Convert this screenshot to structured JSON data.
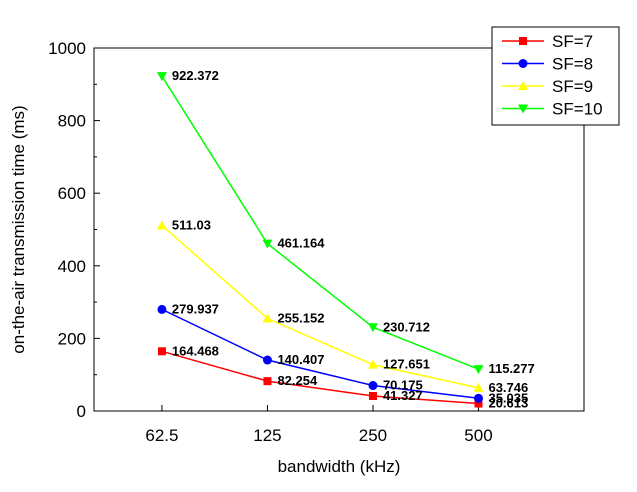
{
  "chart_data": {
    "type": "line",
    "xlabel": "bandwidth (kHz)",
    "ylabel": "on-the-air transmission time (ms)",
    "x": [
      62.5,
      125,
      250,
      500
    ],
    "x_tick_labels": [
      "62.5",
      "125",
      "250",
      "500"
    ],
    "y_ticks": [
      0,
      200,
      400,
      600,
      800,
      1000
    ],
    "y_tick_labels": [
      "0",
      "200",
      "400",
      "600",
      "800",
      "1000"
    ],
    "ylim": [
      0,
      1000
    ],
    "x_scale": "log",
    "legend_position": "top-right",
    "grid": false,
    "series": [
      {
        "name": "SF=7",
        "color": "#ff0000",
        "marker": "square",
        "values": [
          164.468,
          82.254,
          41.327,
          20.613
        ],
        "labels": [
          "164.468",
          "82.254",
          "41.327",
          "20.613"
        ]
      },
      {
        "name": "SF=8",
        "color": "#0000ff",
        "marker": "circle",
        "values": [
          279.937,
          140.407,
          70.175,
          35.035
        ],
        "labels": [
          "279.937",
          "140.407",
          "70.175",
          "35.035"
        ]
      },
      {
        "name": "SF=9",
        "color": "#ffff00",
        "marker": "triangle-up",
        "values": [
          511.03,
          255.152,
          127.651,
          63.746
        ],
        "labels": [
          "511.03",
          "255.152",
          "127.651",
          "63.746"
        ]
      },
      {
        "name": "SF=10",
        "color": "#00ff00",
        "marker": "triangle-down",
        "values": [
          922.372,
          461.164,
          230.712,
          115.277
        ],
        "labels": [
          "922.372",
          "461.164",
          "230.712",
          "115.277"
        ]
      }
    ]
  }
}
